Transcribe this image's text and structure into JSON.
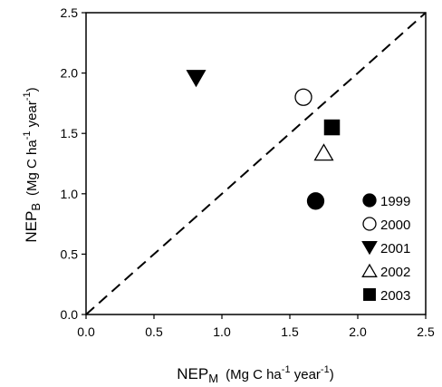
{
  "chart_data": {
    "type": "scatter",
    "x_label": [
      "NEP",
      "M",
      "(Mg C ha",
      "-1",
      " year",
      "-1",
      ")"
    ],
    "y_label": [
      "NEP",
      "B",
      "(Mg C ha",
      "-1",
      " year",
      "-1",
      ")"
    ],
    "xlim": [
      0,
      2.5
    ],
    "ylim": [
      0,
      2.5
    ],
    "xticks": [
      {
        "value": 0,
        "label": "0.0"
      },
      0.5,
      {
        "value": 1,
        "label": "1.0"
      },
      1.5,
      {
        "value": 2,
        "label": "2.0"
      },
      2.5
    ],
    "yticks": [
      {
        "value": 0,
        "label": "0.0"
      },
      0.5,
      {
        "value": 1,
        "label": "1.0"
      },
      1.5,
      {
        "value": 2,
        "label": "2.0"
      },
      2.5
    ],
    "legend": "lower right",
    "series": [
      {
        "name": "1999",
        "color": "#000000",
        "marker": "circle",
        "filled": true,
        "x": [
          1.69
        ],
        "y": [
          0.94
        ]
      },
      {
        "name": "2000",
        "color": "#000000",
        "marker": "circle",
        "filled": false,
        "x": [
          1.6
        ],
        "y": [
          1.8
        ]
      },
      {
        "name": "2001",
        "color": "#000000",
        "marker": "triangle-down",
        "filled": true,
        "x": [
          0.81
        ],
        "y": [
          1.96
        ]
      },
      {
        "name": "2002",
        "color": "#000000",
        "marker": "triangle-up",
        "filled": false,
        "x": [
          1.75
        ],
        "y": [
          1.34
        ]
      },
      {
        "name": "2003",
        "color": "#000000",
        "marker": "square",
        "filled": true,
        "x": [
          1.81
        ],
        "y": [
          1.55
        ]
      }
    ]
  }
}
